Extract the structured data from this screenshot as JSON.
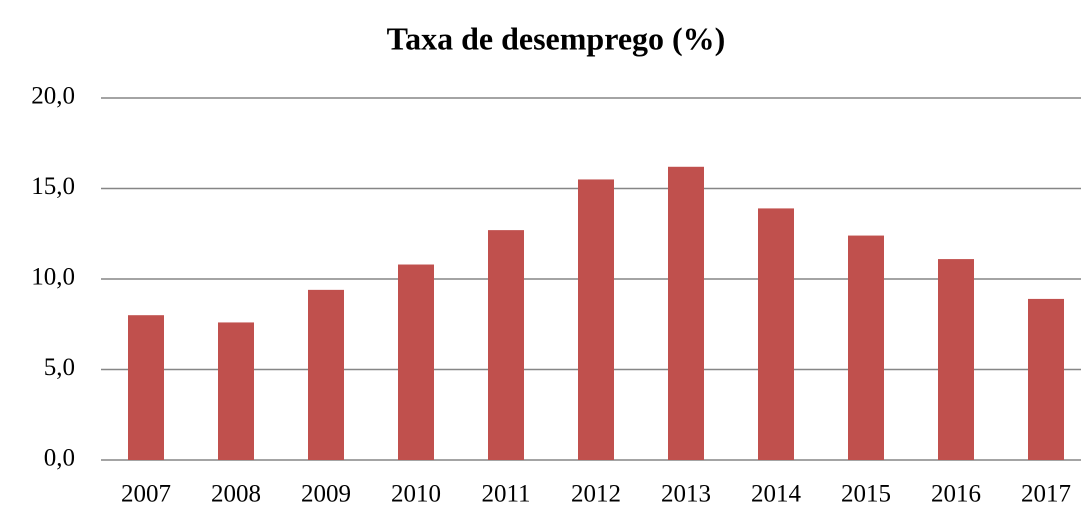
{
  "chart_data": {
    "type": "bar",
    "title": "Taxa de desemprego (%)",
    "categories": [
      "2007",
      "2008",
      "2009",
      "2010",
      "2011",
      "2012",
      "2013",
      "2014",
      "2015",
      "2016",
      "2017"
    ],
    "values": [
      8.0,
      7.6,
      9.4,
      10.8,
      12.7,
      15.5,
      16.2,
      13.9,
      12.4,
      11.1,
      8.9
    ],
    "color": "#c0504d",
    "ylim": [
      0,
      20
    ],
    "yticks": [
      {
        "value": 0,
        "label": "0,0"
      },
      {
        "value": 5,
        "label": "5,0"
      },
      {
        "value": 10,
        "label": "10,0"
      },
      {
        "value": 15,
        "label": "15,0"
      },
      {
        "value": 20,
        "label": "20,0"
      }
    ],
    "grid": true
  }
}
